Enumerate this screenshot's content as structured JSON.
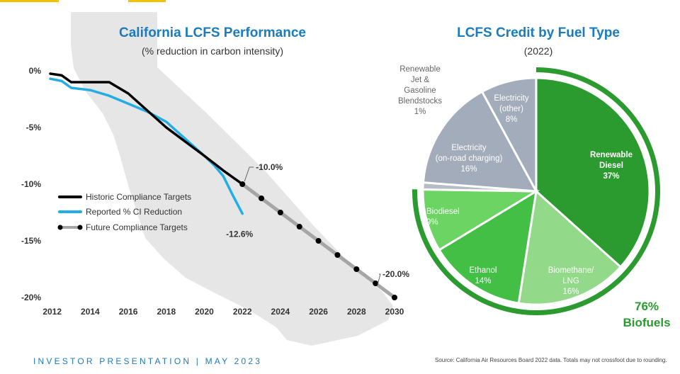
{
  "footer": {
    "left": "INVESTOR PRESENTATION | MAY 2023",
    "source": "Source: California Air Resources Board  2022 data. Totals may not crossfoot due to rounding."
  },
  "colors": {
    "accent": "#1a7bbd",
    "topbar": "#f2c200",
    "map": "#e6e6e6"
  },
  "chart_data": [
    {
      "type": "line",
      "title": "California LCFS Performance",
      "subtitle": "(% reduction in carbon intensity)",
      "x_ticks": [
        "2012",
        "2014",
        "2016",
        "2018",
        "2020",
        "2022",
        "2024",
        "2026",
        "2028",
        "2030"
      ],
      "y_ticks": [
        "0%",
        "-5%",
        "-10%",
        "-15%",
        "-20%"
      ],
      "xlim": [
        2011.9,
        2030
      ],
      "ylim": [
        -20,
        0
      ],
      "grid": false,
      "legend_position": "left-middle",
      "series": [
        {
          "name": "Historic Compliance Targets",
          "color": "#000000",
          "x": [
            2011.9,
            2012.5,
            2013,
            2014,
            2015,
            2016,
            2017,
            2018,
            2019,
            2020,
            2021,
            2022
          ],
          "y": [
            -0.25,
            -0.4,
            -1.0,
            -1.0,
            -1.0,
            -2.0,
            -3.5,
            -5.0,
            -6.25,
            -7.5,
            -8.8,
            -10.0
          ]
        },
        {
          "name": "Reported % CI Reduction",
          "color": "#22aee4",
          "x": [
            2011.9,
            2012.5,
            2013,
            2014,
            2015,
            2016,
            2017,
            2018,
            2019,
            2020,
            2020.5,
            2021,
            2021.5,
            2022
          ],
          "y": [
            -0.7,
            -0.9,
            -1.5,
            -1.7,
            -2.2,
            -2.9,
            -3.6,
            -4.5,
            -6.0,
            -7.5,
            -8.3,
            -9.3,
            -11.0,
            -12.6
          ]
        },
        {
          "name": "Future Compliance Targets",
          "color": "#a6a6a6",
          "markers": true,
          "x": [
            2022,
            2023,
            2024,
            2025,
            2026,
            2027,
            2028,
            2029,
            2030
          ],
          "y": [
            -10.0,
            -11.25,
            -12.5,
            -13.75,
            -15.0,
            -16.25,
            -17.5,
            -18.75,
            -20.0
          ]
        }
      ],
      "annotations": [
        {
          "text": "-10.0%",
          "x": 2022,
          "y": -10.0
        },
        {
          "text": "-12.6%",
          "x": 2022,
          "y": -12.6
        },
        {
          "text": "-20.0%",
          "x": 2030,
          "y": -20.0
        }
      ]
    },
    {
      "type": "pie",
      "title": "LCFS Credit by Fuel Type",
      "subtitle": "(2022)",
      "slices": [
        {
          "label": "Renewable Diesel",
          "value": 37,
          "display": "37%",
          "color": "#2b9a2f",
          "group": "biofuel"
        },
        {
          "label": "Biomethane/ LNG",
          "value": 16,
          "display": "16%",
          "color": "#93d98a",
          "group": "biofuel"
        },
        {
          "label": "Ethanol",
          "value": 14,
          "display": "14%",
          "color": "#44bf46",
          "group": "biofuel"
        },
        {
          "label": "Biodiesel",
          "value": 9,
          "display": "9%",
          "color": "#6cd463",
          "group": "biofuel"
        },
        {
          "label": "Renewable Jet & Gasoline Blendstocks",
          "value": 1,
          "display": "1%",
          "color": "#b4bcc6",
          "group": "other"
        },
        {
          "label": "Electricity (on-road charging)",
          "value": 16,
          "display": "16%",
          "color": "#a2acba",
          "group": "other"
        },
        {
          "label": "Electricity (other)",
          "value": 8,
          "display": "8%",
          "color": "#a2acba",
          "group": "other"
        }
      ],
      "ring": {
        "value": "76%",
        "label": "Biofuels",
        "color": "#2b9a2f"
      }
    }
  ]
}
